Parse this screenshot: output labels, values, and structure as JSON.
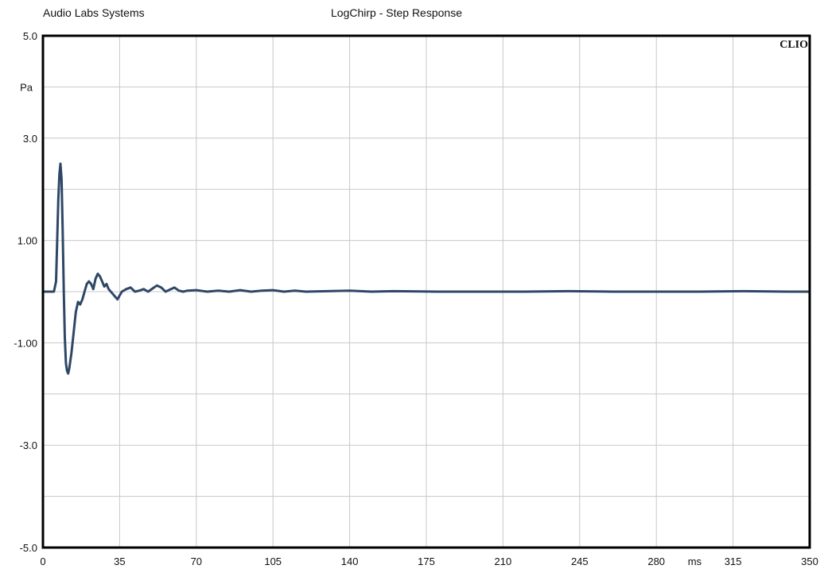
{
  "header": {
    "left_label": "Audio Labs Systems",
    "center_title": "LogChirp - Step Response"
  },
  "brand": "CLIO",
  "colors": {
    "trace": "#2e4766",
    "frame": "#000000",
    "grid": "#c8c8c8",
    "background": "#ffffff"
  },
  "chart_data": {
    "type": "line",
    "title": "LogChirp - Step Response",
    "xlabel": "ms",
    "ylabel": "Pa",
    "xlim": [
      0,
      350
    ],
    "ylim": [
      -5,
      5
    ],
    "grid": true,
    "x_ticks": [
      {
        "value": 0,
        "label": "0"
      },
      {
        "value": 35,
        "label": "35"
      },
      {
        "value": 70,
        "label": "70"
      },
      {
        "value": 105,
        "label": "105"
      },
      {
        "value": 140,
        "label": "140"
      },
      {
        "value": 175,
        "label": "175"
      },
      {
        "value": 210,
        "label": "210"
      },
      {
        "value": 245,
        "label": "245"
      },
      {
        "value": 280,
        "label": "280"
      },
      {
        "value": 315,
        "label": "315"
      },
      {
        "value": 350,
        "label": "350"
      }
    ],
    "y_ticks": [
      {
        "value": 5,
        "label": "5.0"
      },
      {
        "value": 3,
        "label": "3.0"
      },
      {
        "value": 1,
        "label": "1.00"
      },
      {
        "value": -1,
        "label": "-1.00"
      },
      {
        "value": -3,
        "label": "-3.0"
      },
      {
        "value": -5,
        "label": "-5.0"
      }
    ],
    "unit_x_label_after": 280,
    "unit_y_label_at": 4,
    "series": [
      {
        "x": [
          0,
          5,
          6,
          6.5,
          7,
          7.5,
          8,
          8.5,
          9,
          9.5,
          10,
          10.5,
          11,
          11.5,
          12,
          13,
          14,
          15,
          16,
          17,
          18,
          19,
          20,
          21,
          22,
          23,
          24,
          25,
          26,
          27,
          28,
          29,
          30,
          32,
          34,
          36,
          38,
          40,
          42,
          44,
          46,
          48,
          50,
          52,
          54,
          56,
          58,
          60,
          62,
          64,
          66,
          70,
          75,
          80,
          85,
          90,
          95,
          100,
          105,
          110,
          115,
          120,
          130,
          140,
          150,
          160,
          180,
          200,
          220,
          240,
          260,
          280,
          300,
          320,
          340,
          350
        ],
        "y": [
          0,
          0,
          0.2,
          1.0,
          1.8,
          2.3,
          2.5,
          2.2,
          1.2,
          0.0,
          -0.9,
          -1.4,
          -1.55,
          -1.6,
          -1.5,
          -1.2,
          -0.8,
          -0.4,
          -0.2,
          -0.25,
          -0.15,
          0.0,
          0.15,
          0.2,
          0.15,
          0.05,
          0.25,
          0.35,
          0.3,
          0.2,
          0.1,
          0.15,
          0.05,
          -0.05,
          -0.15,
          0.0,
          0.05,
          0.08,
          0.0,
          0.02,
          0.05,
          0.0,
          0.06,
          0.12,
          0.08,
          0.0,
          0.04,
          0.08,
          0.02,
          0.0,
          0.02,
          0.03,
          0.0,
          0.02,
          0.0,
          0.03,
          0.0,
          0.02,
          0.03,
          0.0,
          0.02,
          0.0,
          0.01,
          0.02,
          0.0,
          0.01,
          0.0,
          0.0,
          0.0,
          0.01,
          0.0,
          0.0,
          0.0,
          0.01,
          0.0,
          0.0
        ]
      }
    ]
  }
}
